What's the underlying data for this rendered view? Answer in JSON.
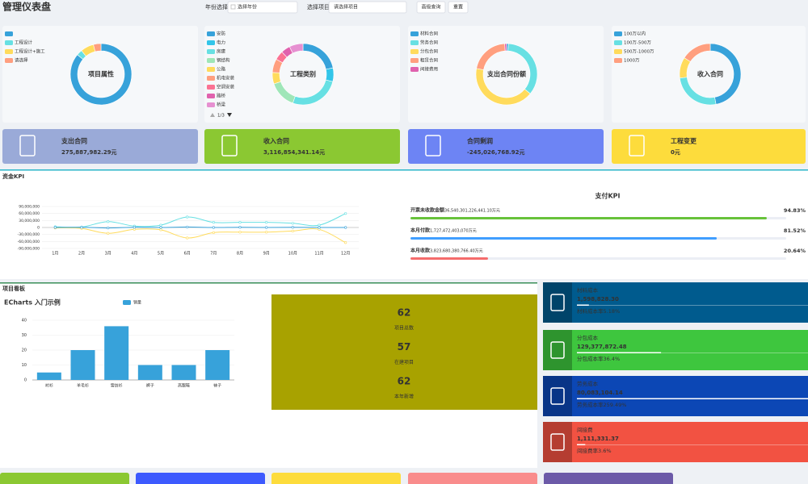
{
  "header": {
    "title": "管理仪表盘",
    "year_label": "年份选择",
    "year_placeholder": "选择年份",
    "project_label": "选择项目",
    "project_placeholder": "请选择项目",
    "search_button": "高级查询",
    "reset_button": "重置"
  },
  "donuts": [
    {
      "type": "pie",
      "center_label": "项目属性",
      "categories": [
        null,
        "工程设计",
        "工程设计+施工",
        "请选择"
      ],
      "colors": [
        "#37a2da",
        "#67e0e3",
        "#ffdb5c",
        "#ff9f7f"
      ],
      "values": [
        86,
        3,
        7,
        4
      ]
    },
    {
      "type": "pie",
      "center_label": "工程类别",
      "pager": "1/3",
      "categories": [
        "安防",
        "电力",
        "房建",
        "钢结构",
        "公路",
        "机电安装",
        "空调安装",
        "路桥",
        "桥梁"
      ],
      "colors": [
        "#37a2da",
        "#32c5e9",
        "#67e0e3",
        "#9fe6b8",
        "#ffdb5c",
        "#ff9f7f",
        "#fb7293",
        "#e062ae",
        "#e690d1"
      ],
      "values": [
        18,
        6,
        22,
        12,
        5,
        6,
        4,
        4,
        6
      ]
    },
    {
      "type": "pie",
      "center_label": "支出合同份额",
      "categories": [
        "材料合同",
        "劳务合同",
        "分包合同",
        "租赁合同",
        "间接费用"
      ],
      "colors": [
        "#37a2da",
        "#67e0e3",
        "#ffdb5c",
        "#ff9f7f",
        "#e062ae"
      ],
      "values": [
        1,
        35,
        42,
        21,
        1
      ]
    },
    {
      "type": "pie",
      "center_label": "收入合同",
      "categories": [
        "100万以内",
        "100万-500万",
        "500万-1000万",
        "1000万"
      ],
      "colors": [
        "#37a2da",
        "#67e0e3",
        "#ffdb5c",
        "#ff9f7f"
      ],
      "values": [
        47,
        26,
        11,
        16
      ]
    }
  ],
  "stat_cards": [
    {
      "title": "支出合同",
      "value": "275,887,982.29元",
      "color": "#9aaad8"
    },
    {
      "title": "收入合同",
      "value": "3,116,854,341.14元",
      "color": "#8bc832"
    },
    {
      "title": "合同剩润",
      "value": "-245,026,768.92元",
      "color": "#6d84f4"
    },
    {
      "title": "工程变更",
      "value": "0元",
      "color": "#fddc3c"
    }
  ],
  "fund_kpi": {
    "title": "资金KPI",
    "chart": {
      "type": "line",
      "categories": [
        "1月",
        "2月",
        "3月",
        "4月",
        "5月",
        "6月",
        "7月",
        "8月",
        "9月",
        "10月",
        "11月",
        "12月"
      ],
      "ylim": [
        -90000000,
        90000000
      ],
      "yticks": [
        {
          "value": 90000000,
          "label": "90,000,000"
        },
        {
          "value": 60000000,
          "label": "60,000,000"
        },
        {
          "value": 30000000,
          "label": "30,000,000"
        },
        0,
        {
          "value": -30000000,
          "label": "-30,000,000"
        },
        {
          "value": -60000000,
          "label": "-60,000,000"
        },
        {
          "value": -90000000,
          "label": "-90,000,000"
        }
      ],
      "series": [
        {
          "color": "#67e0e3",
          "values": [
            3000000,
            2000000,
            25000000,
            6000000,
            10000000,
            45000000,
            22000000,
            22000000,
            22000000,
            18000000,
            10000000,
            60000000
          ]
        },
        {
          "color": "#ffdb5c",
          "values": [
            -2000000,
            -4000000,
            -25000000,
            -8000000,
            -10000000,
            -45000000,
            -22000000,
            -20000000,
            -20000000,
            -15000000,
            -8000000,
            -65000000
          ]
        },
        {
          "color": "#37a2da",
          "values": [
            0,
            1000000,
            -2000000,
            1000000,
            0,
            2000000,
            0,
            1000000,
            0,
            1000000,
            0,
            0
          ]
        }
      ]
    },
    "pay_kpi": {
      "title": "支付KPI",
      "items": [
        {
          "label": "开票未收款金额",
          "amount": "36,540,301,226,441.10万元",
          "percent": {
            "value": 94.83,
            "label": "94.83%"
          },
          "color": "#67c23a"
        },
        {
          "label": "本月付款",
          "amount": "1,727,472,403,070万元",
          "percent": {
            "value": 81.52,
            "label": "81.52%"
          },
          "color": "#409eff"
        },
        {
          "label": "本月收款",
          "amount": "3,823,680,380,766.40万元",
          "percent": {
            "value": 20.64,
            "label": "20.64%"
          },
          "color": "#f56c6c"
        }
      ]
    }
  },
  "project_board": {
    "title": "项目看板",
    "chart": {
      "type": "bar",
      "title": "ECharts 入门示例",
      "categories": [
        "衬衫",
        "羊毛衫",
        "雪纺衫",
        "裤子",
        "高跟鞋",
        "袜子"
      ],
      "series": [
        {
          "name": "销量",
          "color": "#37a2da",
          "values": [
            5,
            20,
            36,
            10,
            10,
            20
          ]
        }
      ],
      "ylim": [
        0,
        40
      ],
      "yticks": [
        0,
        10,
        20,
        30,
        40
      ]
    },
    "summary": {
      "color": "#a8a200",
      "items": [
        {
          "value": 62,
          "label": "项目总数"
        },
        {
          "value": 57,
          "label": "在建项目"
        },
        {
          "value": 62,
          "label": "本年新增"
        }
      ]
    },
    "cost_cards": [
      {
        "title": "材料成本",
        "amount": "1,598,828.30",
        "rate": 5.18,
        "rate_label": "材料成本率5.18%",
        "color": "#005b8e"
      },
      {
        "title": "分包成本",
        "amount": "129,377,872.48",
        "rate": 36.4,
        "rate_label": "分包成本率36.4%",
        "color": "#3ec63e"
      },
      {
        "title": "劳务成本",
        "amount": "80,083,104.14",
        "rate": 259.49,
        "rate_label": "劳务成本率259.49%",
        "color": "#0c47b5"
      },
      {
        "title": "间接费",
        "amount": "1,111,331.37",
        "rate": 3.6,
        "rate_label": "间接费率3.6%",
        "color": "#f25242"
      }
    ]
  }
}
